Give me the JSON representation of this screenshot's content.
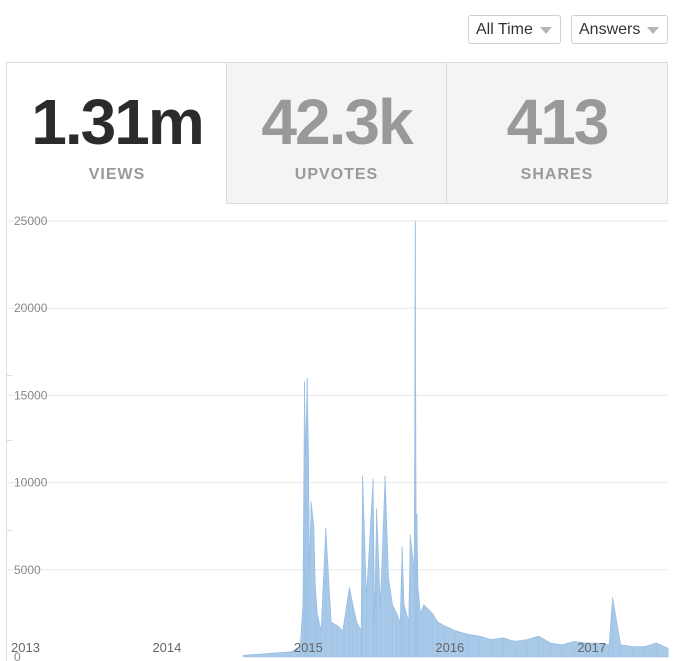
{
  "filters": {
    "range": "All Time",
    "content_type": "Answers"
  },
  "stats": [
    {
      "value": "1.31m",
      "label": "VIEWS",
      "active": true
    },
    {
      "value": "42.3k",
      "label": "UPVOTES",
      "active": false
    },
    {
      "value": "413",
      "label": "SHARES",
      "active": false
    }
  ],
  "chart_data": {
    "type": "area",
    "title": "",
    "xlabel": "",
    "ylabel": "",
    "ylim": [
      0,
      25000
    ],
    "xlim": [
      "2013-01-01",
      "2017-08-31"
    ],
    "yticks": [
      "25000",
      "20000",
      "15000",
      "10000",
      "5000",
      "0"
    ],
    "xticks": [
      "2013",
      "2014",
      "2015",
      "2016",
      "2017"
    ],
    "grid": true,
    "legend": "none",
    "color": "#a9c9e8",
    "series": [
      {
        "x": [
          "2014-09-01",
          "2014-11-01",
          "2015-01-01",
          "2015-01-25",
          "2015-02-01",
          "2015-02-05",
          "2015-02-08",
          "2015-02-12",
          "2015-02-15",
          "2015-02-18",
          "2015-02-22",
          "2015-03-01",
          "2015-03-05",
          "2015-03-10",
          "2015-03-20",
          "2015-04-01",
          "2015-04-15",
          "2015-05-01",
          "2015-05-15",
          "2015-06-01",
          "2015-06-10",
          "2015-06-20",
          "2015-07-01",
          "2015-07-05",
          "2015-07-15",
          "2015-08-01",
          "2015-08-05",
          "2015-08-10",
          "2015-08-20",
          "2015-09-01",
          "2015-09-10",
          "2015-09-20",
          "2015-10-01",
          "2015-10-10",
          "2015-10-15",
          "2015-10-20",
          "2015-11-01",
          "2015-11-05",
          "2015-11-15",
          "2015-11-18",
          "2015-11-20",
          "2015-11-22",
          "2015-11-25",
          "2015-12-01",
          "2015-12-10",
          "2016-01-01",
          "2016-01-15",
          "2016-02-01",
          "2016-03-01",
          "2016-04-01",
          "2016-05-01",
          "2016-06-01",
          "2016-07-01",
          "2016-08-01",
          "2016-09-01",
          "2016-10-01",
          "2016-11-01",
          "2016-12-01",
          "2017-01-01",
          "2017-02-01",
          "2017-03-01",
          "2017-04-01",
          "2017-04-10",
          "2017-05-01",
          "2017-06-01",
          "2017-07-01",
          "2017-08-01",
          "2017-08-31"
        ],
        "y": [
          100,
          200,
          300,
          600,
          3000,
          15800,
          11500,
          16000,
          12000,
          5000,
          8900,
          7500,
          4000,
          2500,
          1500,
          7400,
          2000,
          1800,
          1500,
          4000,
          3000,
          2000,
          1500,
          10400,
          3500,
          10200,
          2000,
          8500,
          3000,
          10400,
          4500,
          3000,
          2500,
          2000,
          6300,
          3000,
          2000,
          7000,
          5000,
          25000,
          8000,
          8200,
          4000,
          2500,
          3000,
          2500,
          2000,
          1800,
          1500,
          1300,
          1200,
          1000,
          1100,
          900,
          1000,
          1200,
          800,
          700,
          900,
          800,
          800,
          700,
          3400,
          700,
          600,
          600,
          800,
          500
        ]
      }
    ]
  }
}
